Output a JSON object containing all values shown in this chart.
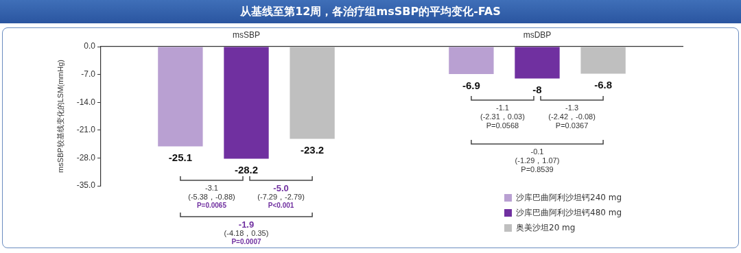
{
  "chart_data": {
    "type": "bar",
    "title": "从基线至第12周，各治疗组msSBP的平均变化-FAS",
    "ylabel": "msSBP较基线变化的LSM(mmHg)",
    "categories": [
      "msSBP",
      "msDBP"
    ],
    "series": [
      {
        "name": "沙库巴曲阿利沙坦钙240 mg",
        "color": "#b9a0d2",
        "values": [
          -25.1,
          -6.9
        ],
        "value_labels": [
          "-25.1",
          "-6.9"
        ]
      },
      {
        "name": "沙库巴曲阿利沙坦钙480 mg",
        "color": "#7030a0",
        "values": [
          -28.2,
          -8
        ],
        "value_labels": [
          "-28.2",
          "-8"
        ]
      },
      {
        "name": "奥美沙坦20 mg",
        "color": "#bfbfbf",
        "values": [
          -23.2,
          -6.8
        ],
        "value_labels": [
          "-23.2",
          "-6.8"
        ]
      }
    ],
    "ylim": [
      -35,
      0
    ],
    "yticks": [
      {
        "value": 0,
        "label": "0.0"
      },
      {
        "value": -7,
        "label": "-7.0"
      },
      {
        "value": -14,
        "label": "-14.0"
      },
      {
        "value": -21,
        "label": "-21.0"
      },
      {
        "value": -28,
        "label": "-28.0"
      },
      {
        "value": -35,
        "label": "-35.0"
      }
    ],
    "grid": false,
    "legend": "bottom right",
    "annotations": [
      "-3.1",
      "(-5.38，-0.88)",
      "P=0.0065",
      "-5.0",
      "(-7.29，-2.79)",
      "P<0.001",
      "-1.9",
      "(-4.18，0.35)",
      "P=0.0007",
      "-1.1",
      "(-2.31，0.03)",
      "P=0.0568",
      "-1.3",
      "(-2.42，-0.08)",
      "P=0.0367",
      "-0.1",
      "(-1.29，1.07)",
      "P=0.8539"
    ]
  }
}
